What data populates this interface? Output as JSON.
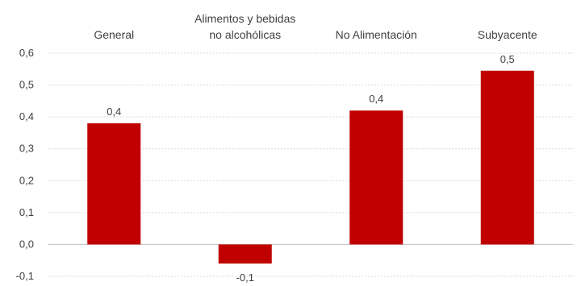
{
  "chart_data": {
    "type": "bar",
    "categories": [
      [
        "General"
      ],
      [
        "Alimentos y bebidas",
        "no alcohólicas"
      ],
      [
        "No Alimentación"
      ],
      [
        "Subyacente"
      ]
    ],
    "values": [
      0.38,
      -0.06,
      0.42,
      0.545
    ],
    "data_labels": [
      "0,4",
      "-0,1",
      "0,4",
      "0,5"
    ],
    "ylim": [
      -0.1,
      0.6
    ],
    "yticks": [
      0.6,
      0.5,
      0.4,
      0.3,
      0.2,
      0.1,
      0.0,
      -0.1
    ],
    "ytick_labels": [
      "0,6",
      "0,5",
      "0,4",
      "0,3",
      "0,2",
      "0,1",
      "0,0",
      "-0,1"
    ],
    "category_label_position": "top",
    "grid": true,
    "bar_color": "#c00000",
    "title": "",
    "xlabel": "",
    "ylabel": ""
  }
}
